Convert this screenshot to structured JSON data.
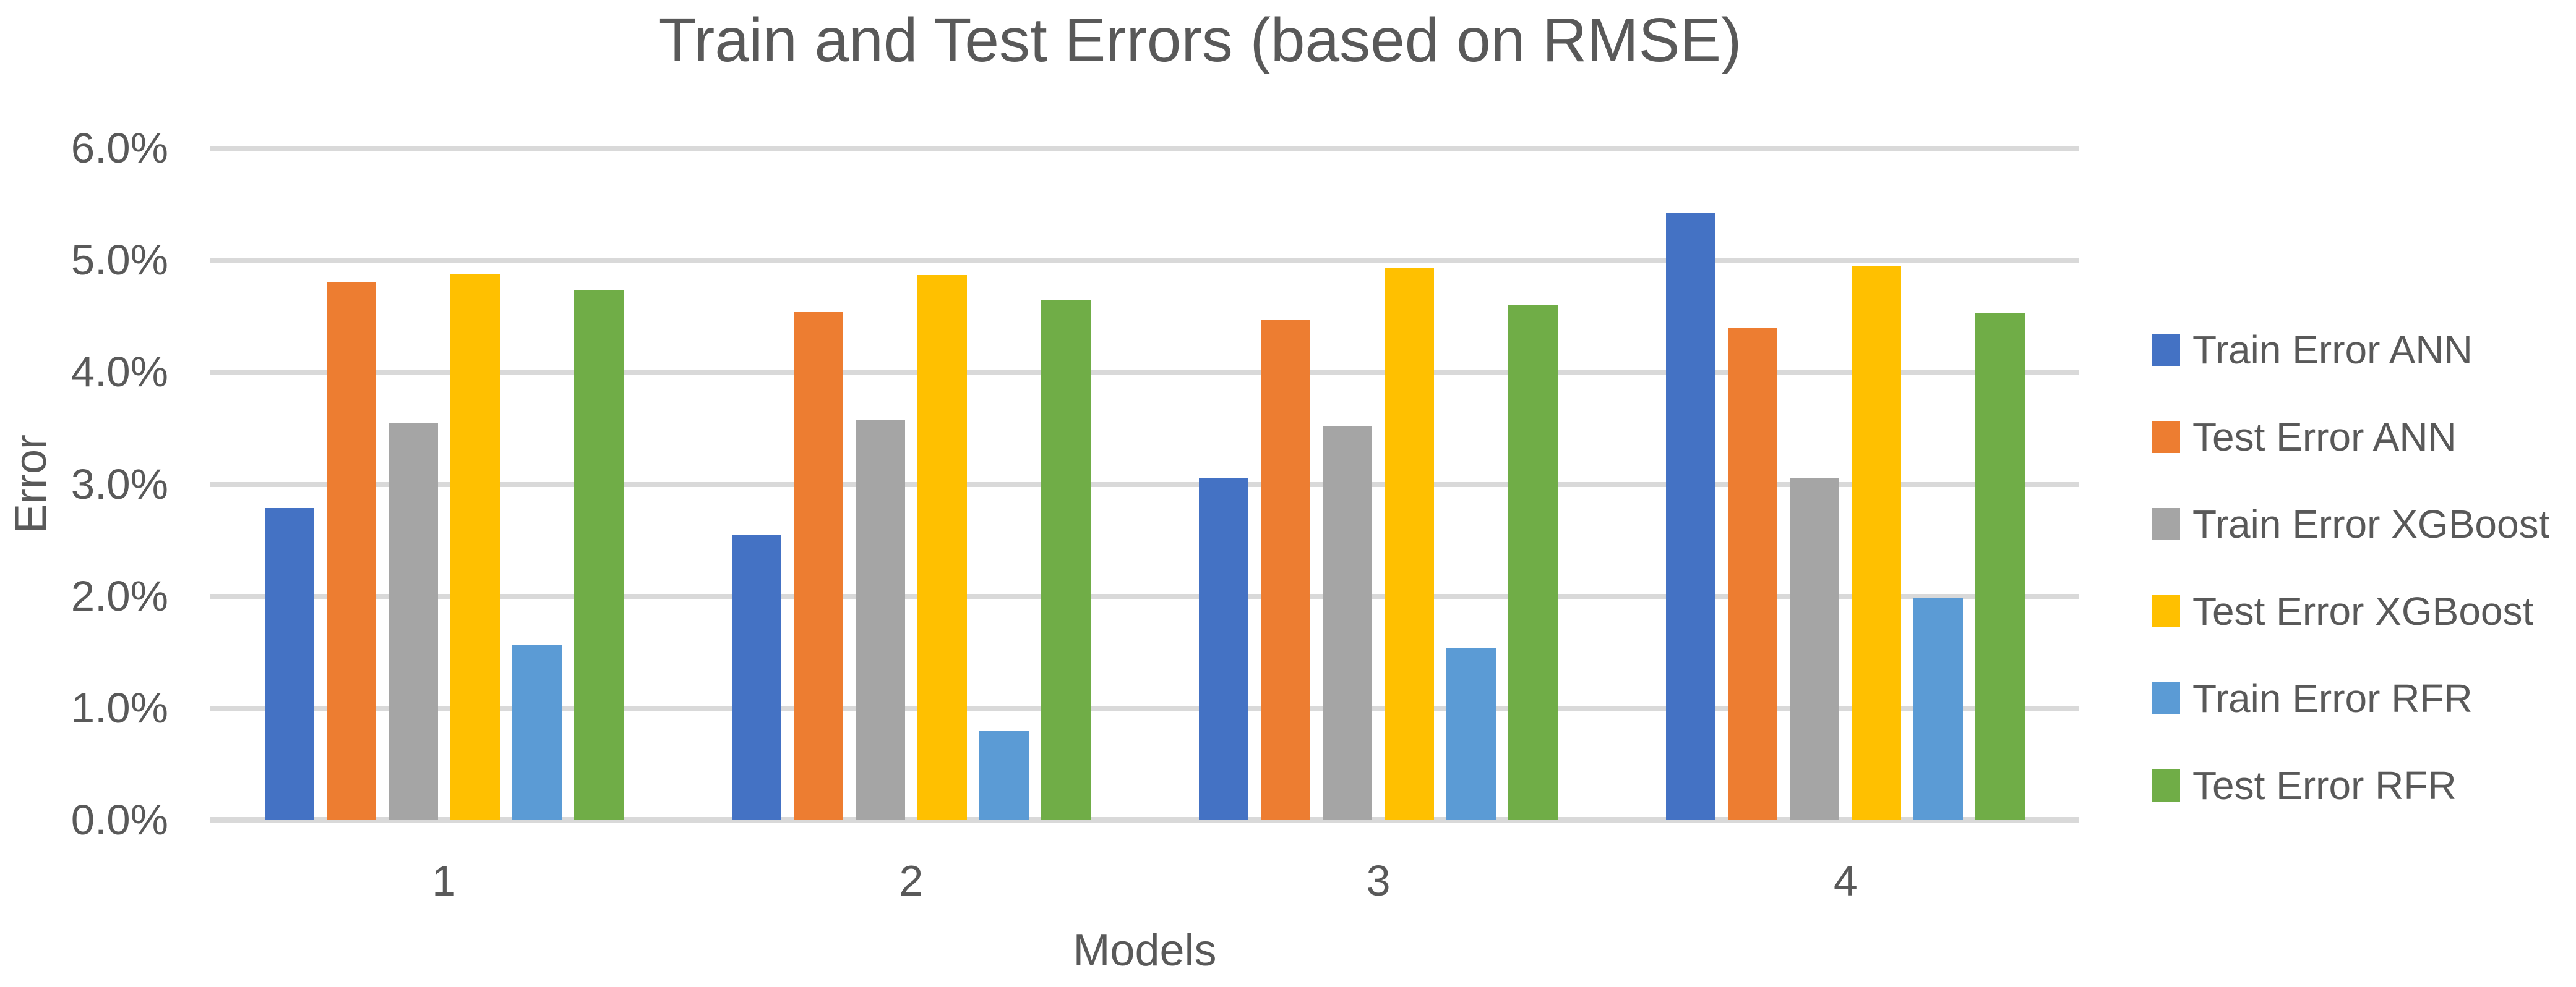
{
  "title": "Train and Test Errors (based on RMSE)",
  "y_axis": {
    "title": "Error",
    "tick_labels": [
      "6.0%",
      "5.0%",
      "4.0%",
      "3.0%",
      "2.0%",
      "1.0%",
      "0.0%"
    ]
  },
  "x_axis": {
    "title": "Models",
    "tick_labels": [
      "1",
      "2",
      "3",
      "4"
    ]
  },
  "colors": {
    "text": "#595959",
    "gridline": "#D9D9D9",
    "axis_line": "#D9D9D9",
    "background": "#FFFFFF"
  },
  "legend": {
    "position": "right",
    "items": [
      "Train Error ANN",
      "Test Error ANN",
      "Train Error XGBoost",
      "Test Error XGBoost",
      "Train Error RFR",
      "Test Error RFR"
    ]
  },
  "chart_data": {
    "type": "bar",
    "title": "Train and Test Errors (based on RMSE)",
    "xlabel": "Models",
    "ylabel": "Error",
    "categories": [
      "1",
      "2",
      "3",
      "4"
    ],
    "series": [
      {
        "name": "Train Error ANN",
        "color": "#4472C4",
        "values": [
          2.79,
          2.55,
          3.05,
          5.42
        ]
      },
      {
        "name": "Test Error ANN",
        "color": "#ED7D31",
        "values": [
          4.81,
          4.54,
          4.47,
          4.4
        ]
      },
      {
        "name": "Train Error XGBoost",
        "color": "#A5A5A5",
        "values": [
          3.55,
          3.57,
          3.52,
          3.06
        ]
      },
      {
        "name": "Test Error XGBoost",
        "color": "#FFC000",
        "values": [
          4.88,
          4.87,
          4.93,
          4.95
        ]
      },
      {
        "name": "Train Error RFR",
        "color": "#5B9BD5",
        "values": [
          1.57,
          0.8,
          1.54,
          1.98
        ]
      },
      {
        "name": "Test Error RFR",
        "color": "#70AD47",
        "values": [
          4.73,
          4.65,
          4.6,
          4.53
        ]
      }
    ],
    "ylim": [
      0,
      6
    ],
    "ytick_step": 1,
    "unit": "%",
    "grid": true,
    "legend_position": "right"
  }
}
